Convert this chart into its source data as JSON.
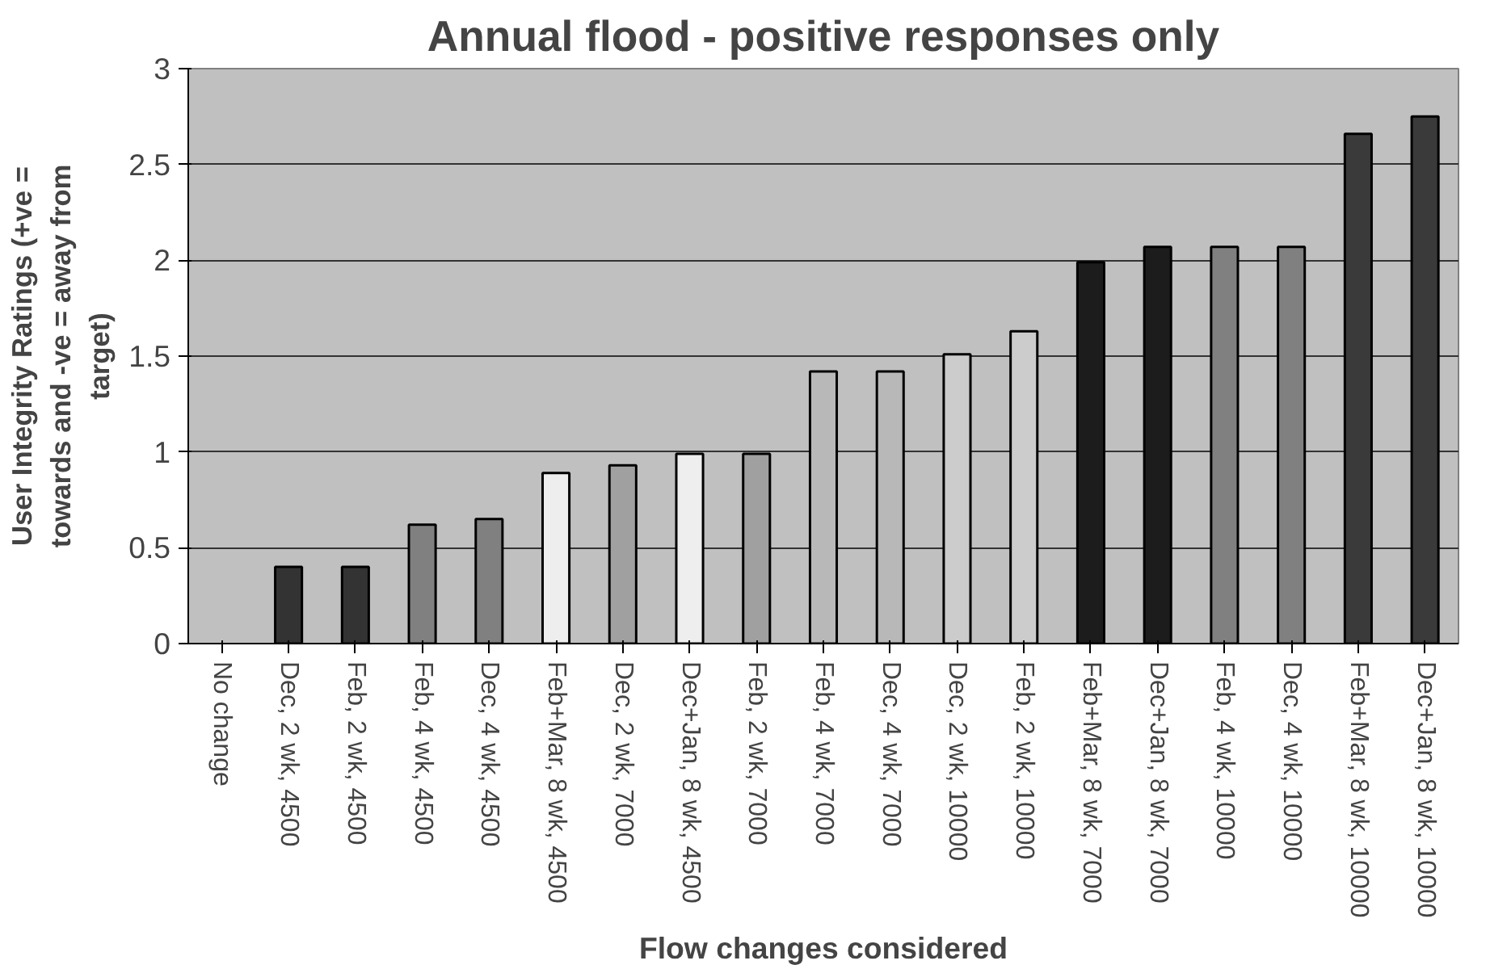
{
  "chart_data": {
    "type": "bar",
    "title": "Annual flood - positive responses only",
    "xlabel": "Flow changes considered",
    "ylabel": "User Integrity Ratings (+ve = towards and -ve = away from target)",
    "categories": [
      "No change",
      "Dec, 2 wk, 4500",
      "Feb, 2 wk, 4500",
      "Feb, 4 wk, 4500",
      "Dec, 4 wk, 4500",
      "Feb+Mar, 8 wk, 4500",
      "Dec, 2 wk, 7000",
      "Dec+Jan, 8 wk, 4500",
      "Feb, 2 wk, 7000",
      "Feb, 4 wk, 7000",
      "Dec, 4 wk, 7000",
      "Dec, 2 wk, 10000",
      "Feb, 2 wk, 10000",
      "Feb+Mar, 8 wk, 7000",
      "Dec+Jan, 8 wk, 7000",
      "Feb, 4 wk, 10000",
      "Dec, 4 wk, 10000",
      "Feb+Mar, 8 wk, 10000",
      "Dec+Jan, 8 wk, 10000"
    ],
    "values": [
      null,
      0.4,
      0.4,
      0.62,
      0.65,
      0.89,
      0.93,
      0.99,
      0.99,
      1.42,
      1.42,
      1.51,
      1.63,
      1.99,
      2.07,
      2.07,
      2.07,
      2.66,
      2.75
    ],
    "colors": [
      null,
      "#333333",
      "#333333",
      "#808080",
      "#808080",
      "#eeeeee",
      "#a0a0a0",
      "#eeeeee",
      "#a0a0a0",
      "#b8b8b8",
      "#b8b8b8",
      "#cccccc",
      "#cccccc",
      "#1c1c1c",
      "#1c1c1c",
      "#808080",
      "#808080",
      "#3a3a3a",
      "#3a3a3a"
    ],
    "ylim": [
      0,
      3
    ],
    "yticks": [
      0,
      0.5,
      1,
      1.5,
      2,
      2.5,
      3
    ],
    "grid": "y"
  }
}
